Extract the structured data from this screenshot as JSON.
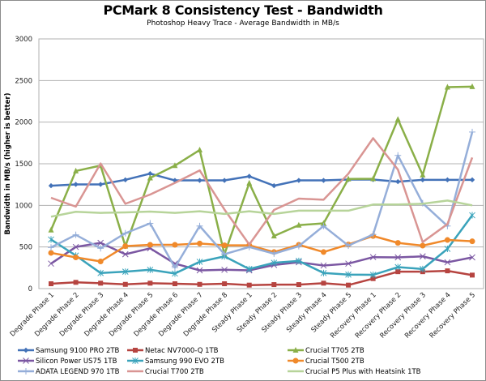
{
  "chart_data": {
    "type": "line",
    "title": "PCMark 8 Consistency Test - Bandwidth",
    "subtitle": "Photoshop Heavy Trace - Average Bandwidth in MB/s",
    "xlabel": "",
    "ylabel": "Bandwidth in MB/s (higher is better)",
    "ylim": [
      0,
      3000
    ],
    "yticks": [
      0,
      500,
      1000,
      1500,
      2000,
      2500,
      3000
    ],
    "grid": true,
    "legend_position": "bottom",
    "categories": [
      "Degrade Phase 1",
      "Degrade Phase 2",
      "Degrade Phase 3",
      "Degrade Phase 4",
      "Degrade Phase 5",
      "Degrade Phase 6",
      "Degrade Phase 7",
      "Degrade Phase 8",
      "Steady Phase 1",
      "Steady Phase 2",
      "Steady Phase 3",
      "Steady Phase 4",
      "Steady Phase 5",
      "Recovery Phase 1",
      "Recovery Phase 2",
      "Recovery Phase 3",
      "Recovery Phase 4",
      "Recovery Phase 5"
    ],
    "series": [
      {
        "name": "Samsung 9100 PRO 2TB",
        "color": "#4372b8",
        "marker": "diamond",
        "values": [
          1236,
          1252,
          1252,
          1307,
          1381,
          1300,
          1300,
          1300,
          1349,
          1236,
          1300,
          1300,
          1310,
          1310,
          1285,
          1307,
          1307,
          1307
        ]
      },
      {
        "name": "Netac NV7000-Q 1TB",
        "color": "#b64440",
        "marker": "square",
        "values": [
          58,
          75,
          65,
          51,
          65,
          58,
          51,
          58,
          42,
          48,
          48,
          65,
          42,
          120,
          203,
          203,
          213,
          162
        ]
      },
      {
        "name": "Crucial T705 2TB",
        "color": "#8aaf48",
        "marker": "triangle",
        "values": [
          704,
          1413,
          1478,
          510,
          1330,
          1478,
          1665,
          413,
          1268,
          632,
          762,
          784,
          1317,
          1320,
          2033,
          1365,
          2420,
          2427
        ]
      },
      {
        "name": "Silicon Power US75 1TB",
        "color": "#7b57a2",
        "marker": "x",
        "values": [
          300,
          500,
          549,
          413,
          484,
          300,
          219,
          226,
          219,
          284,
          316,
          277,
          300,
          378,
          375,
          387,
          316,
          375
        ]
      },
      {
        "name": "Samsung 990 EVO 2TB",
        "color": "#3aa3bb",
        "marker": "star",
        "values": [
          590,
          397,
          187,
          203,
          226,
          181,
          322,
          387,
          235,
          310,
          332,
          187,
          168,
          165,
          258,
          235,
          477,
          881
        ]
      },
      {
        "name": "Crucial T500 2TB",
        "color": "#f0892a",
        "marker": "circle",
        "values": [
          429,
          375,
          326,
          510,
          526,
          526,
          542,
          520,
          520,
          439,
          526,
          439,
          530,
          632,
          549,
          516,
          584,
          568
        ]
      },
      {
        "name": "ADATA LEGEND 970 1TB",
        "color": "#95aed9",
        "marker": "plus",
        "values": [
          494,
          646,
          484,
          665,
          784,
          252,
          752,
          413,
          500,
          420,
          510,
          752,
          516,
          650,
          1600,
          1026,
          752,
          1881
        ]
      },
      {
        "name": "Crucial T700 2TB",
        "color": "#d99593",
        "marker": "none",
        "values": [
          1091,
          985,
          1503,
          1019,
          1130,
          1270,
          1420,
          950,
          530,
          945,
          1081,
          1068,
          1380,
          1807,
          1430,
          559,
          775,
          1575
        ]
      },
      {
        "name": "Crucial P5 Plus with Heatsink 1TB",
        "color": "#b7d49a",
        "marker": "none",
        "values": [
          864,
          923,
          910,
          915,
          925,
          910,
          929,
          897,
          929,
          897,
          936,
          936,
          936,
          1010,
          1010,
          1019,
          1058,
          1000
        ]
      }
    ]
  }
}
